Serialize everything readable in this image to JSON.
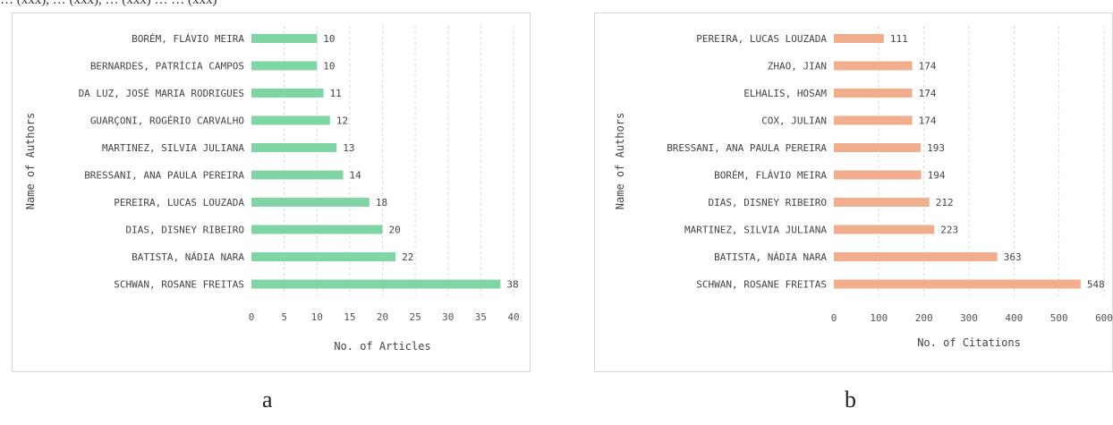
{
  "caption_fragment": "… (xxx), … (xxx), … (xxx) … … (xxx)",
  "subfigure_labels": [
    "a",
    "b"
  ],
  "chart_data": [
    {
      "type": "bar",
      "orientation": "horizontal",
      "title": "",
      "xlabel": "No. of Articles",
      "ylabel": "Name of Authors",
      "xlim": [
        0,
        40
      ],
      "xticks": [
        0,
        5,
        10,
        15,
        20,
        25,
        30,
        35,
        40
      ],
      "grid": "vertical dashed",
      "bar_color": "#7fd5a4",
      "categories": [
        "BORÉM, FLÁVIO MEIRA",
        "BERNARDES, PATRÍCIA CAMPOS",
        "DA LUZ, JOSÉ MARIA RODRIGUES",
        "GUARÇONI, ROGÉRIO CARVALHO",
        "MARTINEZ, SILVIA JULIANA",
        "BRESSANI, ANA PAULA PEREIRA",
        "PEREIRA, LUCAS LOUZADA",
        "DIAS, DISNEY RIBEIRO",
        "BATISTA, NÁDIA NARA",
        "SCHWAN, ROSANE FREITAS"
      ],
      "values": [
        10,
        10,
        11,
        12,
        13,
        14,
        18,
        20,
        22,
        38
      ]
    },
    {
      "type": "bar",
      "orientation": "horizontal",
      "title": "",
      "xlabel": "No. of Citations",
      "ylabel": "Name of Authors",
      "xlim": [
        0,
        600
      ],
      "xticks": [
        0,
        100,
        200,
        300,
        400,
        500,
        600
      ],
      "grid": "vertical dashed",
      "bar_color": "#f2ad8c",
      "categories": [
        "PEREIRA, LUCAS LOUZADA",
        "ZHAO, JIAN",
        "ELHALIS, HOSAM",
        "COX, JULIAN",
        "BRESSANI, ANA PAULA PEREIRA",
        "BORÉM, FLÁVIO MEIRA",
        "DIAS, DISNEY RIBEIRO",
        "MARTINEZ, SILVIA JULIANA",
        "BATISTA, NÁDIA NARA",
        "SCHWAN, ROSANE FREITAS"
      ],
      "values": [
        111,
        174,
        174,
        174,
        193,
        194,
        212,
        223,
        363,
        548
      ]
    }
  ]
}
